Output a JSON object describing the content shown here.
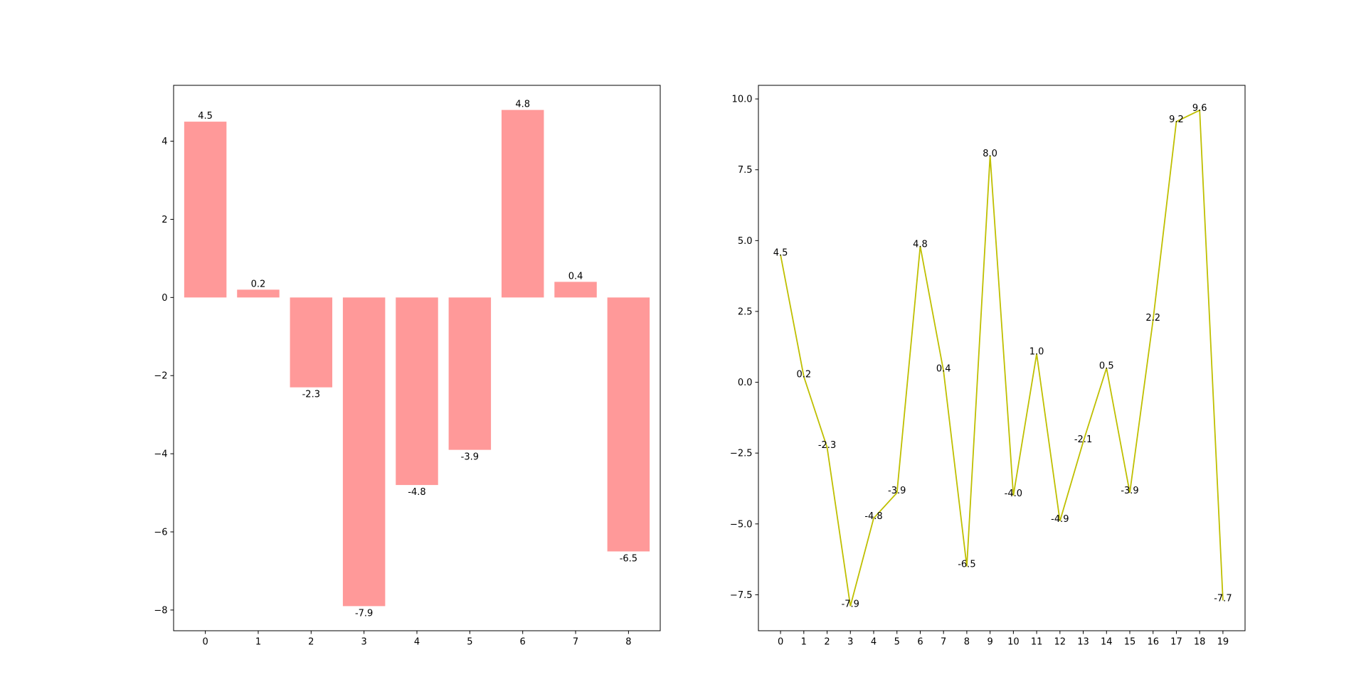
{
  "chart_data": [
    {
      "type": "bar",
      "title": "",
      "xlabel": "",
      "ylabel": "",
      "categories": [
        "0",
        "1",
        "2",
        "3",
        "4",
        "5",
        "6",
        "7",
        "8"
      ],
      "values": [
        4.5,
        0.2,
        -2.3,
        -7.9,
        -4.8,
        -3.9,
        4.8,
        0.4,
        -6.5
      ],
      "data_labels": [
        "4.5",
        "0.2",
        "-2.3",
        "-7.9",
        "-4.8",
        "-3.9",
        "4.8",
        "0.4",
        "-6.5"
      ],
      "ylim": [
        -8.53,
        5.43
      ],
      "yticks": [
        -8,
        -6,
        -4,
        -2,
        0,
        2,
        4
      ],
      "ytick_labels": [
        "−8",
        "−6",
        "−4",
        "−2",
        "0",
        "2",
        "4"
      ],
      "grid": false,
      "color": "#ff9999"
    },
    {
      "type": "line",
      "title": "",
      "xlabel": "",
      "ylabel": "",
      "x": [
        0,
        1,
        2,
        3,
        4,
        5,
        6,
        7,
        8,
        9,
        10,
        11,
        12,
        13,
        14,
        15,
        16,
        17,
        18,
        19
      ],
      "y": [
        4.5,
        0.2,
        -2.3,
        -7.9,
        -4.8,
        -3.9,
        4.8,
        0.4,
        -6.5,
        8.0,
        -4.0,
        1.0,
        -4.9,
        -2.1,
        0.5,
        -3.9,
        2.2,
        9.2,
        9.6,
        -7.7
      ],
      "data_labels": [
        "4.5",
        "0.2",
        "-2.3",
        "-7.9",
        "-4.8",
        "-3.9",
        "4.8",
        "0.4",
        "-6.5",
        "8.0",
        "-4.0",
        "1.0",
        "-4.9",
        "-2.1",
        "0.5",
        "-3.9",
        "2.2",
        "9.2",
        "9.6",
        "-7.7"
      ],
      "ylim": [
        -8.77,
        10.48
      ],
      "yticks": [
        -7.5,
        -5.0,
        -2.5,
        0.0,
        2.5,
        5.0,
        7.5,
        10.0
      ],
      "ytick_labels": [
        "−7.5",
        "−5.0",
        "−2.5",
        "0.0",
        "2.5",
        "5.0",
        "7.5",
        "10.0"
      ],
      "grid": false,
      "color": "#bfbf00"
    }
  ]
}
